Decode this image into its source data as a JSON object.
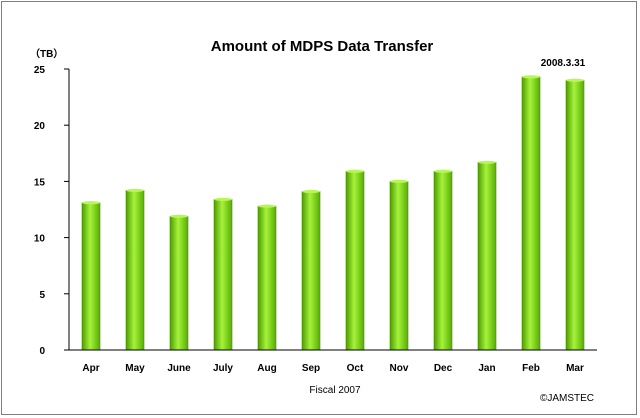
{
  "chart_data": {
    "type": "bar",
    "title": "Amount of MDPS Data Transfer",
    "unit_label": "（TB）",
    "xlabel": "Fiscal 2007",
    "ylabel": "",
    "ylim": [
      0,
      25
    ],
    "yticks": [
      0,
      5,
      10,
      15,
      20,
      25
    ],
    "grid": false,
    "categories": [
      "Apr",
      "May",
      "June",
      "July",
      "Aug",
      "Sep",
      "Oct",
      "Nov",
      "Dec",
      "Jan",
      "Feb",
      "Mar"
    ],
    "values": [
      13.1,
      14.2,
      11.9,
      13.4,
      12.8,
      14.1,
      15.9,
      15.0,
      15.9,
      16.7,
      24.3,
      24.0
    ],
    "bar_color": "#66cc00",
    "annotation": "2008.3.31",
    "credit": "©JAMSTEC"
  }
}
